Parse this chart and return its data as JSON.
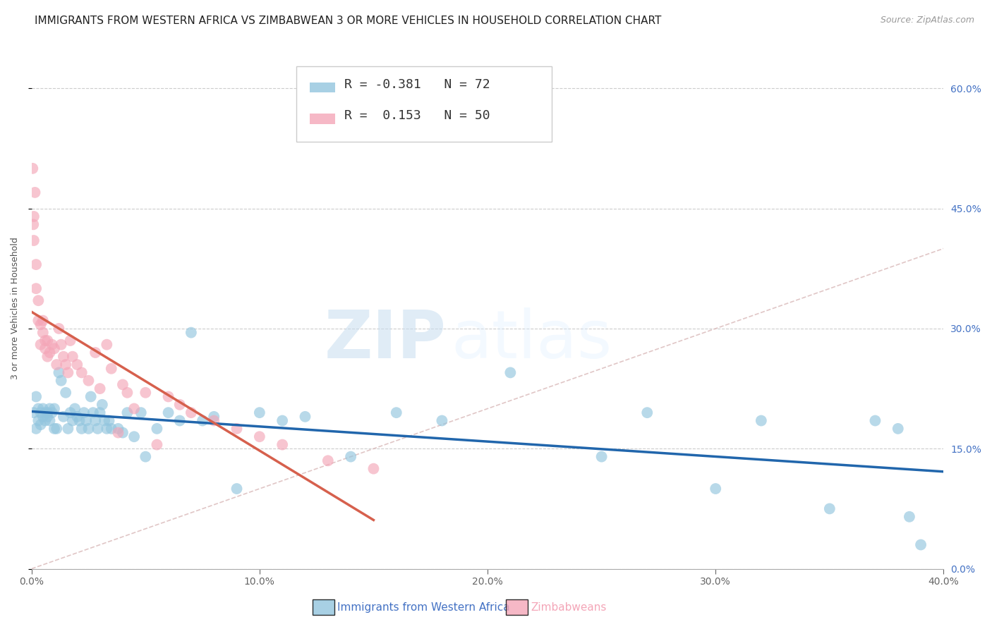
{
  "title": "IMMIGRANTS FROM WESTERN AFRICA VS ZIMBABWEAN 3 OR MORE VEHICLES IN HOUSEHOLD CORRELATION CHART",
  "source": "Source: ZipAtlas.com",
  "ylabel": "3 or more Vehicles in Household",
  "legend_label1": "Immigrants from Western Africa",
  "legend_label2": "Zimbabweans",
  "R1": -0.381,
  "N1": 72,
  "R2": 0.153,
  "N2": 50,
  "blue_color": "#92c5de",
  "pink_color": "#f4a6b8",
  "blue_line_color": "#2166ac",
  "pink_line_color": "#d6604d",
  "ref_line_color": "#d9b8b8",
  "xmin": 0.0,
  "xmax": 0.4,
  "ymin": 0.0,
  "ymax": 0.65,
  "yticks": [
    0.0,
    0.15,
    0.3,
    0.45,
    0.6
  ],
  "xticks": [
    0.0,
    0.1,
    0.2,
    0.3,
    0.4
  ],
  "blue_x": [
    0.001,
    0.002,
    0.002,
    0.003,
    0.003,
    0.004,
    0.004,
    0.005,
    0.005,
    0.006,
    0.006,
    0.007,
    0.007,
    0.008,
    0.008,
    0.009,
    0.01,
    0.01,
    0.011,
    0.012,
    0.013,
    0.014,
    0.015,
    0.016,
    0.017,
    0.018,
    0.019,
    0.02,
    0.021,
    0.022,
    0.023,
    0.024,
    0.025,
    0.026,
    0.027,
    0.028,
    0.029,
    0.03,
    0.031,
    0.032,
    0.033,
    0.034,
    0.035,
    0.038,
    0.04,
    0.042,
    0.045,
    0.048,
    0.05,
    0.055,
    0.06,
    0.065,
    0.07,
    0.075,
    0.08,
    0.09,
    0.1,
    0.11,
    0.12,
    0.14,
    0.16,
    0.18,
    0.21,
    0.25,
    0.27,
    0.3,
    0.32,
    0.35,
    0.37,
    0.38,
    0.385,
    0.39
  ],
  "blue_y": [
    0.195,
    0.175,
    0.215,
    0.2,
    0.185,
    0.195,
    0.18,
    0.2,
    0.19,
    0.195,
    0.185,
    0.19,
    0.195,
    0.2,
    0.185,
    0.195,
    0.2,
    0.175,
    0.175,
    0.245,
    0.235,
    0.19,
    0.22,
    0.175,
    0.195,
    0.185,
    0.2,
    0.19,
    0.185,
    0.175,
    0.195,
    0.185,
    0.175,
    0.215,
    0.195,
    0.185,
    0.175,
    0.195,
    0.205,
    0.185,
    0.175,
    0.185,
    0.175,
    0.175,
    0.17,
    0.195,
    0.165,
    0.195,
    0.14,
    0.175,
    0.195,
    0.185,
    0.295,
    0.185,
    0.19,
    0.1,
    0.195,
    0.185,
    0.19,
    0.14,
    0.195,
    0.185,
    0.245,
    0.14,
    0.195,
    0.1,
    0.185,
    0.075,
    0.185,
    0.175,
    0.065,
    0.03
  ],
  "pink_x": [
    0.0005,
    0.0008,
    0.001,
    0.001,
    0.0015,
    0.002,
    0.002,
    0.003,
    0.003,
    0.004,
    0.004,
    0.005,
    0.005,
    0.006,
    0.006,
    0.007,
    0.007,
    0.008,
    0.009,
    0.01,
    0.011,
    0.012,
    0.013,
    0.014,
    0.015,
    0.016,
    0.017,
    0.018,
    0.02,
    0.022,
    0.025,
    0.028,
    0.03,
    0.033,
    0.035,
    0.038,
    0.04,
    0.042,
    0.045,
    0.05,
    0.055,
    0.06,
    0.065,
    0.07,
    0.08,
    0.09,
    0.1,
    0.11,
    0.13,
    0.15
  ],
  "pink_y": [
    0.5,
    0.43,
    0.44,
    0.41,
    0.47,
    0.38,
    0.35,
    0.335,
    0.31,
    0.305,
    0.28,
    0.31,
    0.295,
    0.285,
    0.275,
    0.265,
    0.285,
    0.27,
    0.28,
    0.275,
    0.255,
    0.3,
    0.28,
    0.265,
    0.255,
    0.245,
    0.285,
    0.265,
    0.255,
    0.245,
    0.235,
    0.27,
    0.225,
    0.28,
    0.25,
    0.17,
    0.23,
    0.22,
    0.2,
    0.22,
    0.155,
    0.215,
    0.205,
    0.195,
    0.185,
    0.175,
    0.165,
    0.155,
    0.135,
    0.125
  ],
  "watermark_zip": "ZIP",
  "watermark_atlas": "atlas",
  "title_fontsize": 11,
  "axis_label_fontsize": 9,
  "tick_fontsize": 10,
  "legend_fontsize": 13,
  "source_fontsize": 9
}
